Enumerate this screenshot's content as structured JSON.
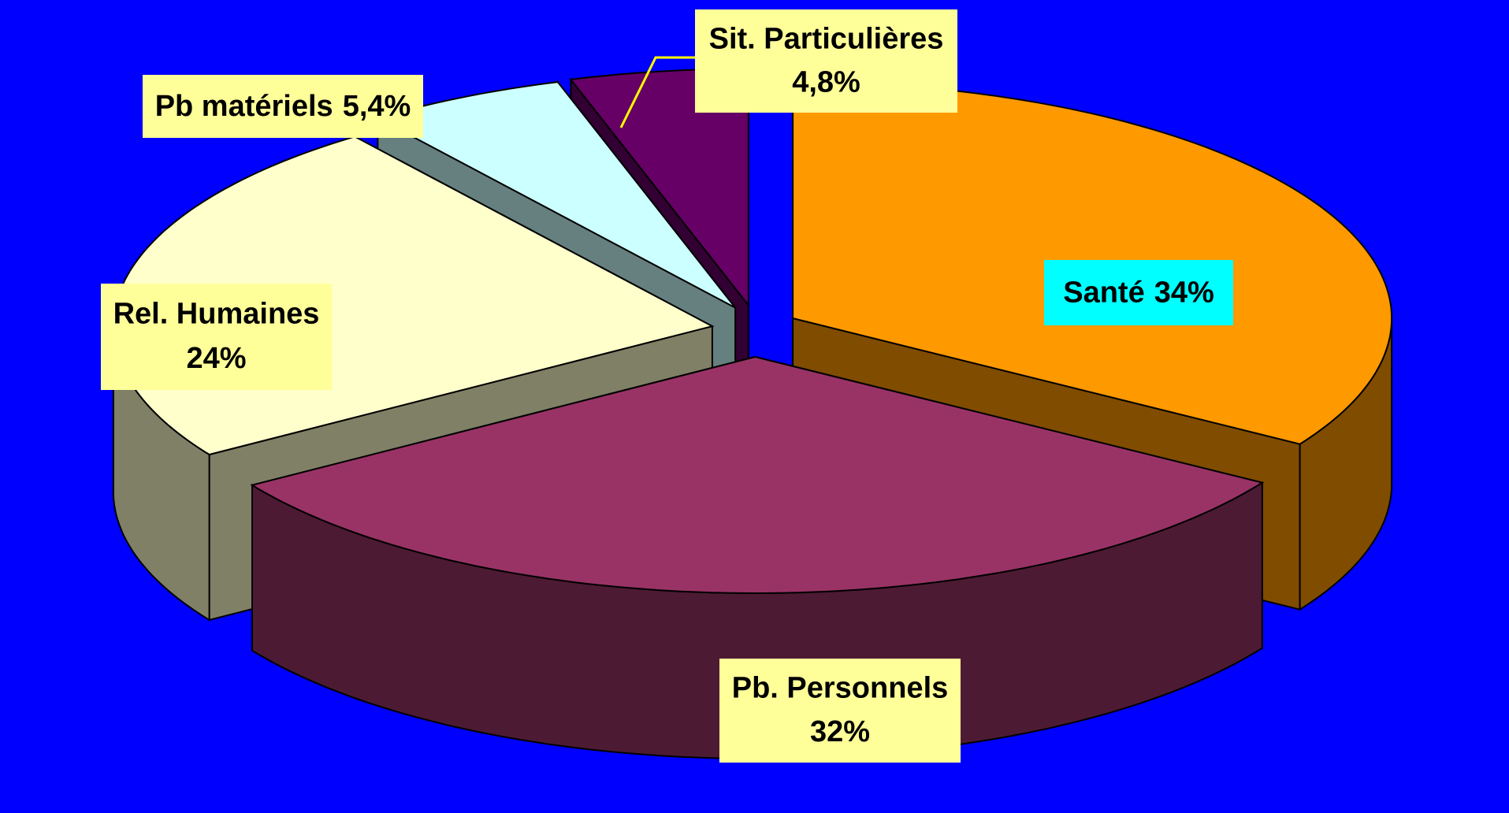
{
  "chart_data": {
    "type": "pie3d",
    "categories": [
      "Santé",
      "Pb. Personnels",
      "Rel. Humaines",
      "Pb matériels",
      "Sit. Particulières"
    ],
    "values": [
      34,
      32,
      24,
      5.4,
      4.8
    ],
    "value_labels": [
      "34%",
      "32%",
      "24%",
      "5,4%",
      "4,8%"
    ],
    "colors": [
      "#FF9900",
      "#993366",
      "#FFFFCC",
      "#CCFFFF",
      "#660066"
    ],
    "side_colors": [
      "#804C00",
      "#4D1A33",
      "#808066",
      "#668080",
      "#330033"
    ],
    "background": "#0000FF"
  }
}
